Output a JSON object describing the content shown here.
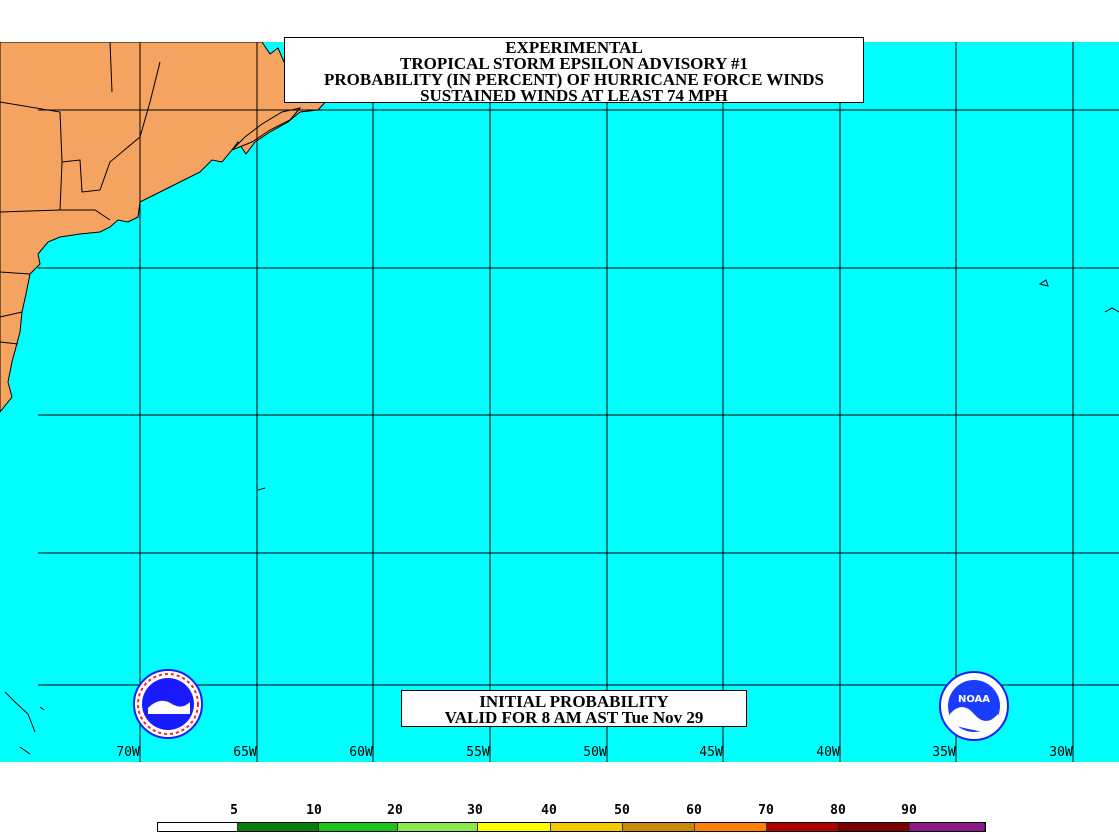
{
  "title": {
    "line1": "EXPERIMENTAL",
    "line2": "TROPICAL STORM EPSILON ADVISORY #1",
    "line3": "PROBABILITY (IN PERCENT) OF HURRICANE FORCE WINDS",
    "line4": "SUSTAINED WINDS AT LEAST 74 MPH"
  },
  "valid": {
    "line1": "INITIAL PROBABILITY",
    "line2": "VALID FOR 8 AM AST Tue Nov 29"
  },
  "longitudes": [
    "70W",
    "65W",
    "60W",
    "55W",
    "50W",
    "45W",
    "40W",
    "35W",
    "30W"
  ],
  "legend": {
    "labels": [
      "5",
      "10",
      "20",
      "30",
      "40",
      "50",
      "60",
      "70",
      "80",
      "90"
    ],
    "colors": [
      "#ffffff",
      "#0a7d0a",
      "#1cc41c",
      "#8ae84a",
      "#ffff00",
      "#f5c800",
      "#c88a00",
      "#ff7f00",
      "#b00000",
      "#7a0000",
      "#8b1a8b"
    ]
  },
  "colors": {
    "ocean": "#00ffff",
    "land": "#f4a460",
    "grid": "#000000"
  },
  "logos": {
    "left": "nws-logo-icon",
    "right": "noaa-logo-icon",
    "right_text": "NOAA"
  }
}
